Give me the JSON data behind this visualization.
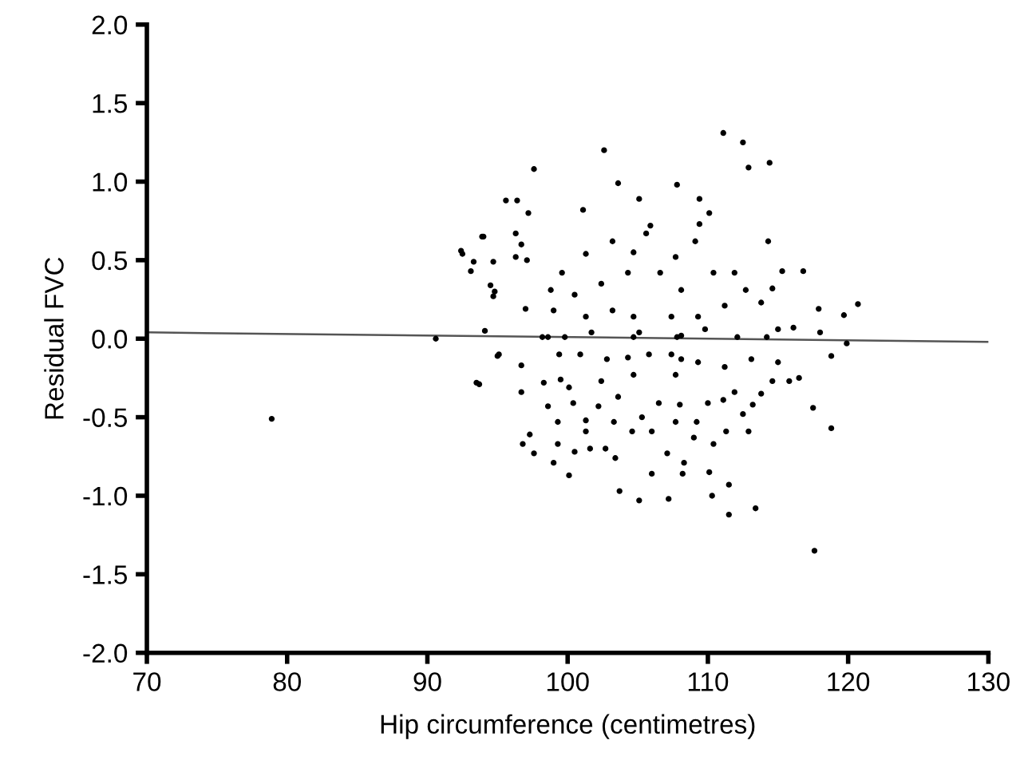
{
  "chart_data": {
    "type": "scatter",
    "xlabel": "Hip circumference (centimetres)",
    "ylabel": "Residual FVC",
    "xlim": [
      70,
      130
    ],
    "xticks": [
      70,
      80,
      90,
      100,
      110,
      120,
      130
    ],
    "ylim": [
      -2.0,
      2.0
    ],
    "yticks": [
      {
        "value": -2.0,
        "label": "-2.0"
      },
      {
        "value": -1.5,
        "label": "-1.5"
      },
      {
        "value": -1.0,
        "label": "-1.0"
      },
      {
        "value": -0.5,
        "label": "-0.5"
      },
      {
        "value": 0.0,
        "label": "0.0"
      },
      {
        "value": 0.5,
        "label": "0.5"
      },
      {
        "value": 1.0,
        "label": "1.0"
      },
      {
        "value": 1.5,
        "label": "1.5"
      },
      {
        "value": 2.0,
        "label": "2.0"
      }
    ],
    "grid": false,
    "legend": false,
    "marker": "circle",
    "series": [
      {
        "color": "#000000",
        "x": [
          78.9,
          90.6,
          92.4,
          93.3,
          93.9,
          93.5,
          94.5,
          94.7,
          95.1,
          95.6,
          97.6,
          96.3,
          97.1,
          102.6,
          103.6,
          107.8,
          111.1,
          112.5,
          112.9,
          114.4,
          96.4,
          97.2,
          101.1,
          105.1,
          109.4,
          110.1,
          109.4,
          105.9,
          94.0,
          96.7,
          92.5,
          114.3,
          116.8,
          115.3,
          93.1,
          94.7,
          94.8,
          96.3,
          97.0,
          94.1,
          114.6,
          113.8,
          118.8,
          116.1,
          117.9,
          119.7,
          120.7,
          119.9,
          93.7,
          95.0,
          117.6,
          113.4,
          111.5,
          111.5,
          110.3,
          107.2,
          105.1,
          103.7,
          100.1,
          99.0,
          97.6,
          106.0,
          108.2,
          110.1,
          108.3,
          103.4,
          101.6,
          100.5,
          96.8,
          97.3,
          99.3,
          102.7,
          107.1,
          110.4,
          109.0,
          111.3,
          112.9,
          118.8,
          117.5,
          112.5,
          113.2,
          113.8,
          114.6,
          116.5,
          111.1,
          110.0,
          107.7,
          106.0,
          104.6,
          103.3,
          101.3,
          101.3,
          99.3,
          98.6,
          100.4,
          102.2,
          103.6,
          105.3,
          106.5,
          108.0,
          109.2,
          96.7,
          96.7,
          98.3,
          99.5,
          100.1,
          102.4,
          104.7,
          107.7,
          109.3,
          111.9,
          111.2,
          113.1,
          115.0,
          115.8,
          99.4,
          100.9,
          102.8,
          104.3,
          105.8,
          107.4,
          98.2,
          101.7,
          105.1,
          108.1,
          109.8,
          112.1,
          115.0,
          118.0,
          98.8,
          99.6,
          101.3,
          103.2,
          104.7,
          105.6,
          107.7,
          109.1,
          110.4,
          111.9,
          112.7,
          111.2,
          108.1,
          106.6,
          104.3,
          102.4,
          100.5,
          99.0,
          101.3,
          103.2,
          104.7,
          107.4,
          109.3,
          107.8,
          104.7,
          99.8,
          98.6,
          108.1,
          114.2
        ],
        "values": [
          -0.51,
          0.0,
          0.56,
          0.49,
          0.65,
          -0.28,
          0.34,
          0.27,
          -0.1,
          0.88,
          1.08,
          0.67,
          0.5,
          1.2,
          0.99,
          0.98,
          1.31,
          1.25,
          1.09,
          1.12,
          0.88,
          0.8,
          0.82,
          0.89,
          0.89,
          0.8,
          0.73,
          0.72,
          0.65,
          0.6,
          0.54,
          0.62,
          0.43,
          0.43,
          0.43,
          0.49,
          0.3,
          0.52,
          0.19,
          0.05,
          0.32,
          0.23,
          -0.11,
          0.07,
          0.19,
          0.15,
          0.22,
          -0.03,
          -0.29,
          -0.11,
          -1.35,
          -1.08,
          -1.12,
          -0.93,
          -1.0,
          -1.02,
          -1.03,
          -0.97,
          -0.87,
          -0.79,
          -0.73,
          -0.86,
          -0.86,
          -0.85,
          -0.79,
          -0.76,
          -0.7,
          -0.72,
          -0.67,
          -0.61,
          -0.67,
          -0.7,
          -0.73,
          -0.67,
          -0.63,
          -0.59,
          -0.59,
          -0.57,
          -0.44,
          -0.48,
          -0.42,
          -0.35,
          -0.27,
          -0.25,
          -0.39,
          -0.41,
          -0.53,
          -0.59,
          -0.59,
          -0.53,
          -0.52,
          -0.59,
          -0.53,
          -0.43,
          -0.41,
          -0.43,
          -0.37,
          -0.5,
          -0.41,
          -0.42,
          -0.53,
          -0.34,
          -0.17,
          -0.28,
          -0.26,
          -0.31,
          -0.27,
          -0.23,
          -0.23,
          -0.15,
          -0.34,
          -0.18,
          -0.13,
          -0.15,
          -0.27,
          -0.1,
          -0.1,
          -0.13,
          -0.12,
          -0.1,
          -0.1,
          0.01,
          0.04,
          0.04,
          0.02,
          0.06,
          0.01,
          0.06,
          0.04,
          0.31,
          0.42,
          0.54,
          0.62,
          0.55,
          0.67,
          0.52,
          0.62,
          0.42,
          0.42,
          0.31,
          0.21,
          0.31,
          0.42,
          0.42,
          0.35,
          0.28,
          0.18,
          0.14,
          0.18,
          0.14,
          0.14,
          0.14,
          0.01,
          0.01,
          0.01,
          0.01,
          -0.13,
          0.01
        ]
      },
      {
        "type": "line",
        "color": "#555555",
        "marker": "none",
        "line_style": "solid",
        "x": [
          70,
          130
        ],
        "values": [
          0.04,
          -0.02
        ]
      }
    ]
  }
}
